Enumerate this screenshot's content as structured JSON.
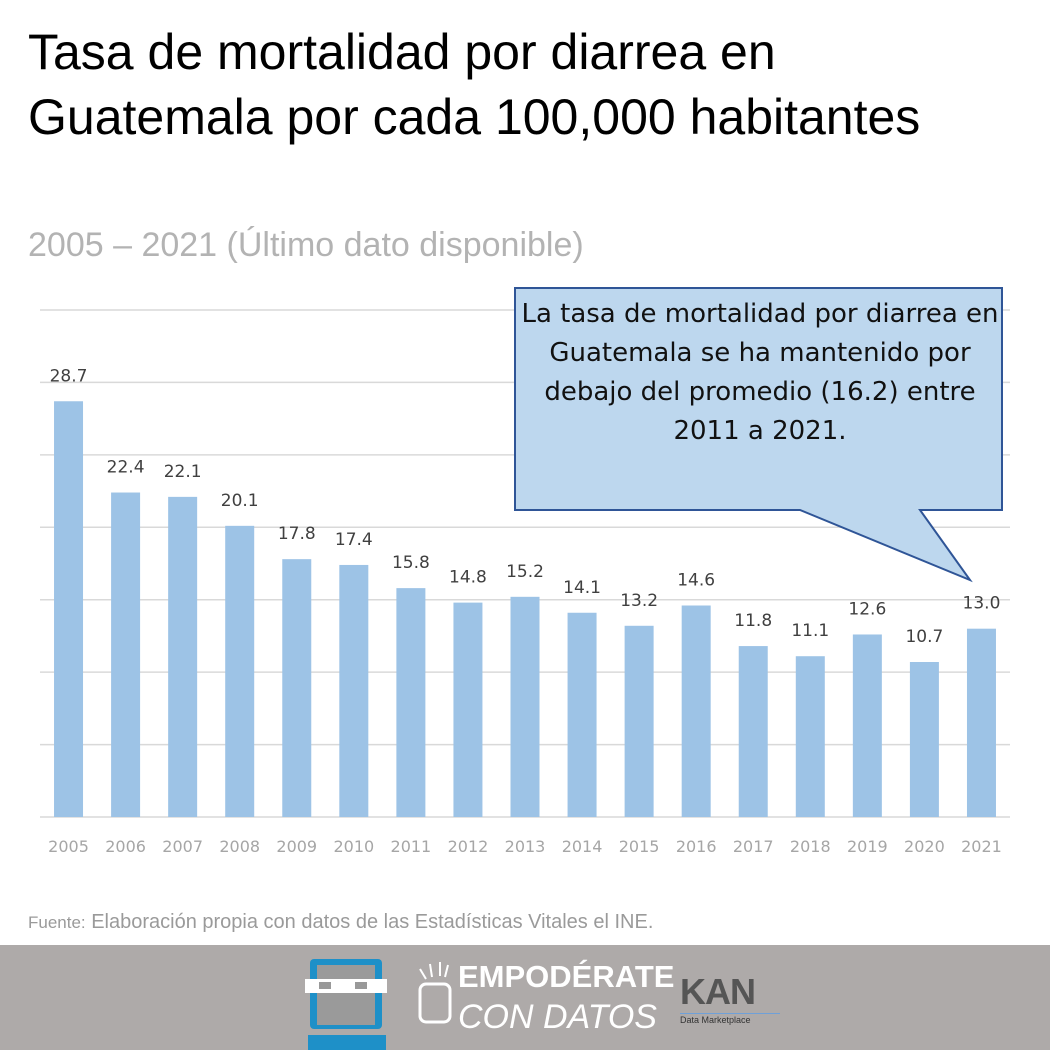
{
  "chart_data": {
    "type": "bar",
    "title": "Tasa de mortalidad por diarrea en Guatemala por cada 100,000 habitantes",
    "subtitle": "2005 – 2021 (Último dato disponible)",
    "categories": [
      "2005",
      "2006",
      "2007",
      "2008",
      "2009",
      "2010",
      "2011",
      "2012",
      "2013",
      "2014",
      "2015",
      "2016",
      "2017",
      "2018",
      "2019",
      "2020",
      "2021"
    ],
    "values": [
      28.7,
      22.4,
      22.1,
      20.1,
      17.8,
      17.4,
      15.8,
      14.8,
      15.2,
      14.1,
      13.2,
      14.6,
      11.8,
      11.1,
      12.6,
      10.7,
      13.0
    ],
    "value_labels": [
      "28.7",
      "22.4",
      "22.1",
      "20.1",
      "17.8",
      "17.4",
      "15.8",
      "14.8",
      "15.2",
      "14.1",
      "13.2",
      "14.6",
      "11.8",
      "11.1",
      "12.6",
      "10.7",
      "13.0"
    ],
    "ylim": [
      0,
      35
    ],
    "ygrid_step": 5,
    "grid": true,
    "xlabel": "",
    "ylabel": "",
    "bar_color": "#9dc3e6",
    "annotation": "La tasa de mortalidad por diarrea en Guatemala se ha mantenido por debajo del promedio (16.2) entre 2011 a 2021."
  },
  "source": {
    "label": "Fuente:",
    "text": " Elaboración propia con datos de las Estadísticas Vitales el INE."
  },
  "footer": {
    "logo1_line1": "EMPODÉRATE",
    "logo1_line2": "CON DATOS",
    "logo2": "KAN",
    "logo2_sub": "Data Marketplace"
  }
}
